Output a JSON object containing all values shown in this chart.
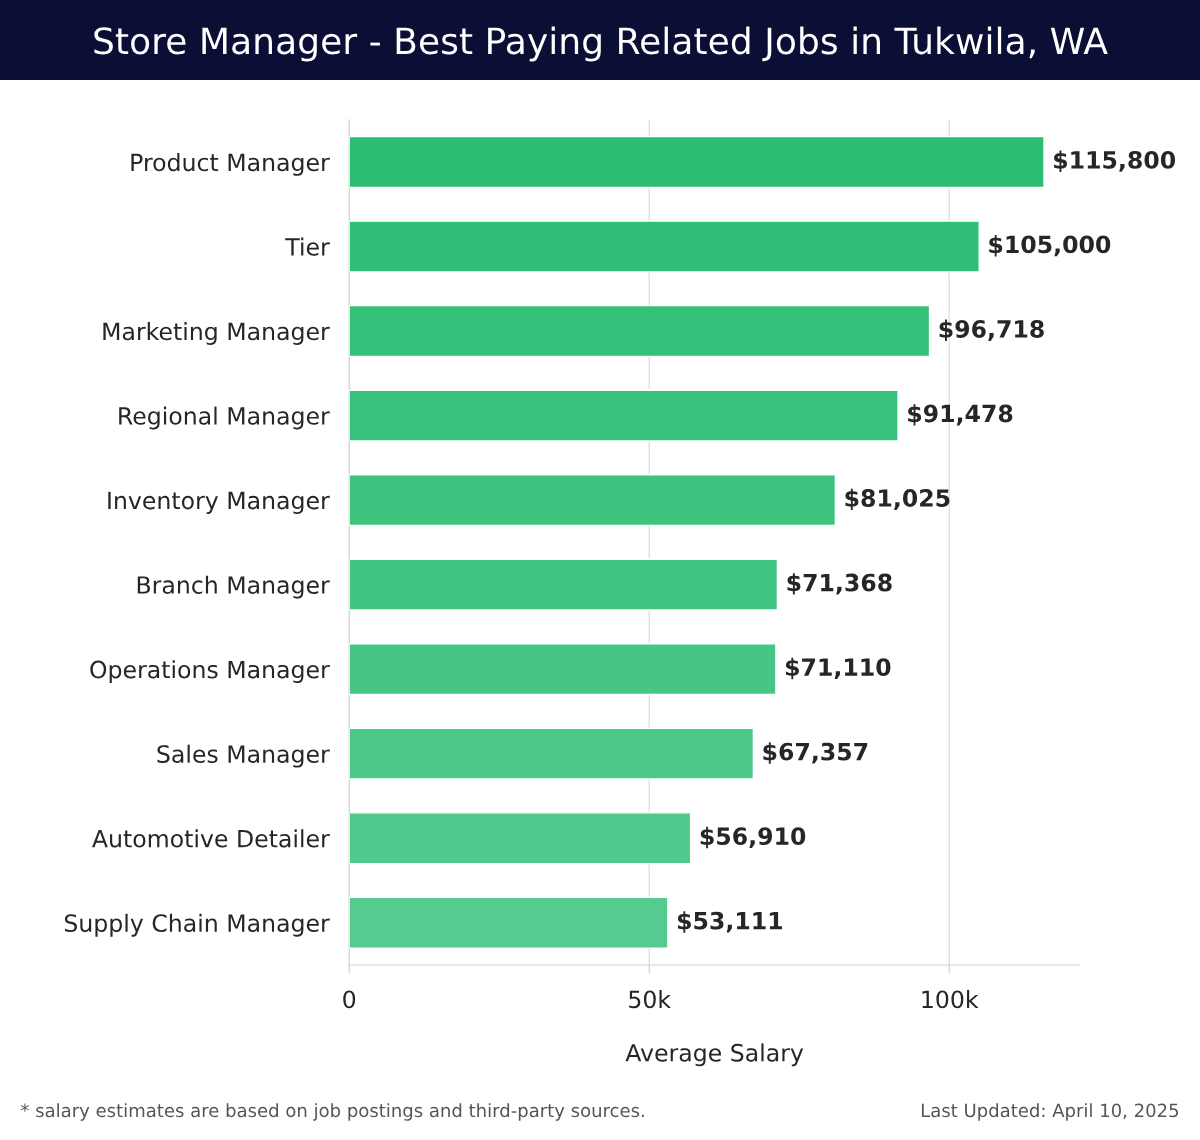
{
  "chart_data": {
    "type": "bar",
    "orientation": "horizontal",
    "title": "Store Manager - Best Paying Related Jobs in Tukwila, WA",
    "categories": [
      "Product Manager",
      "Tier",
      "Marketing Manager",
      "Regional Manager",
      "Inventory Manager",
      "Branch Manager",
      "Operations Manager",
      "Sales Manager",
      "Automotive Detailer",
      "Supply Chain Manager"
    ],
    "values": [
      115800,
      105000,
      96718,
      91478,
      81025,
      71368,
      71110,
      67357,
      56910,
      53111
    ],
    "value_labels": [
      "$115,800",
      "$105,000",
      "$96,718",
      "$91,478",
      "$81,025",
      "$71,368",
      "$71,110",
      "$67,357",
      "$56,910",
      "$53,111"
    ],
    "colors": [
      "#2bbd72",
      "#2fbe75",
      "#34c078",
      "#38c17b",
      "#3dc37e",
      "#42c482",
      "#46c685",
      "#4bc788",
      "#50c98c",
      "#55cb90"
    ],
    "xlabel": "Average Salary",
    "xlim": [
      0,
      121800
    ],
    "xticks": [
      0,
      {
        "value": 50000,
        "label": "50k"
      },
      {
        "value": 100000,
        "label": "100k"
      }
    ],
    "grid": "x",
    "annotations": [
      "* salary estimates are based on job postings and third-party sources.",
      "Last Updated: April 10, 2025"
    ]
  }
}
